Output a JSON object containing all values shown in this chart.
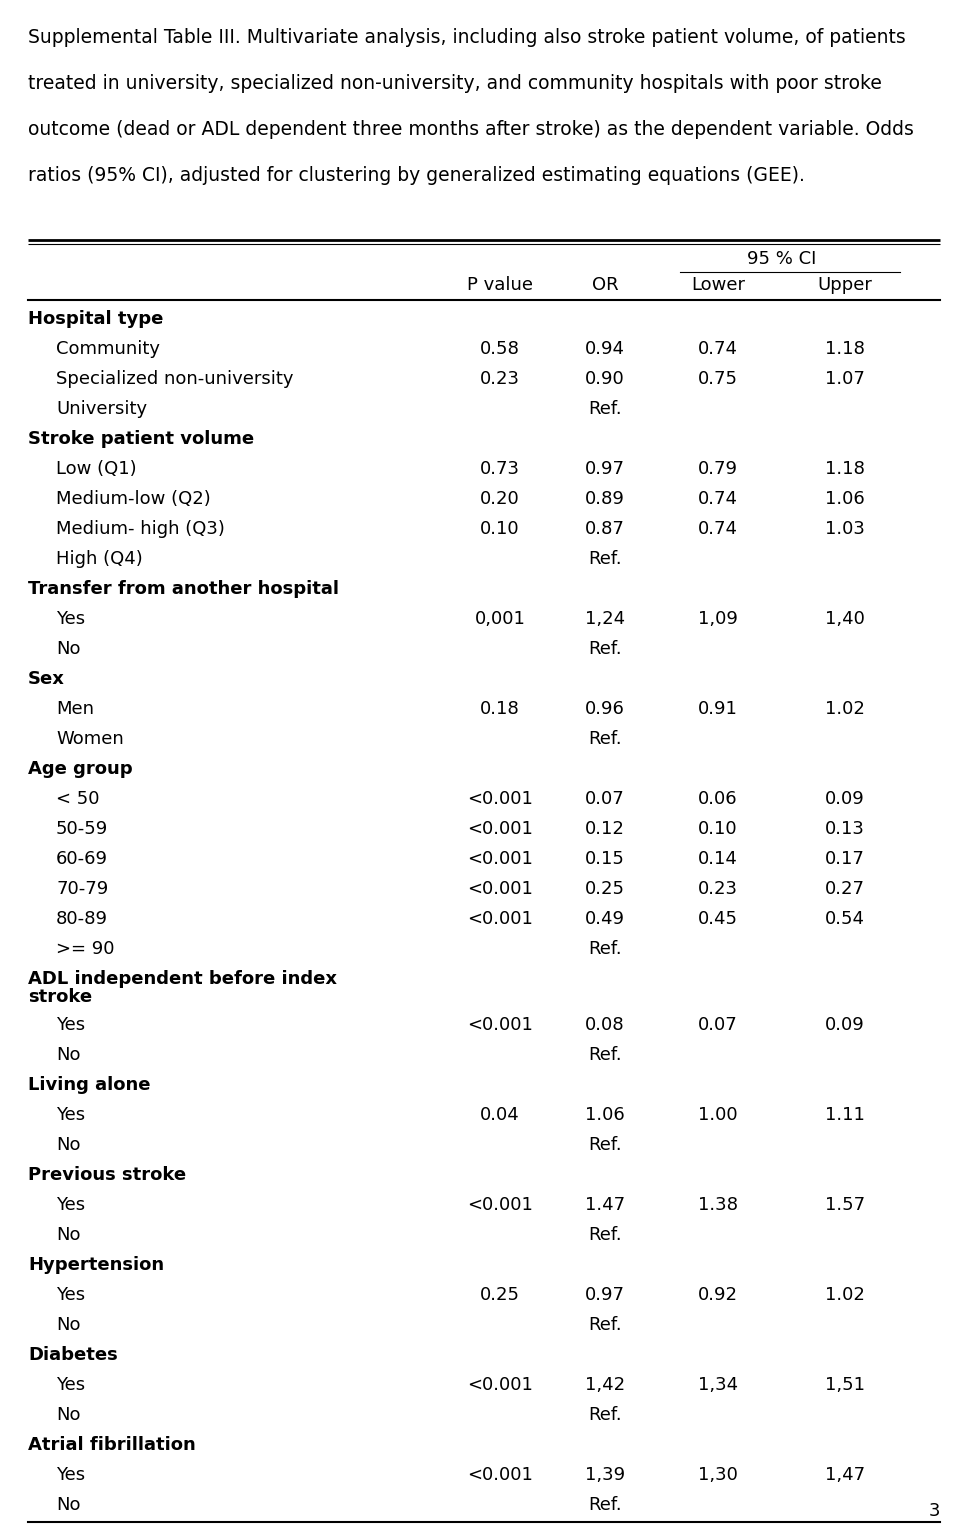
{
  "title_lines": [
    "Supplemental Table III. Multivariate analysis, including also stroke patient volume, of patients",
    "treated in university, specialized non-university, and community hospitals with poor stroke",
    "outcome (dead or ADL dependent three months after stroke) as the dependent variable. Odds",
    "ratios (95% CI), adjusted for clustering by generalized estimating equations (GEE)."
  ],
  "ci_header": "95 % CI",
  "col_labels": [
    "P value",
    "OR",
    "Lower",
    "Upper"
  ],
  "rows": [
    {
      "label": "Hospital type",
      "bold": true,
      "indent": false,
      "p": "",
      "or": "",
      "lower": "",
      "upper": ""
    },
    {
      "label": "Community",
      "bold": false,
      "indent": true,
      "p": "0.58",
      "or": "0.94",
      "lower": "0.74",
      "upper": "1.18"
    },
    {
      "label": "Specialized non-university",
      "bold": false,
      "indent": true,
      "p": "0.23",
      "or": "0.90",
      "lower": "0.75",
      "upper": "1.07"
    },
    {
      "label": "University",
      "bold": false,
      "indent": true,
      "p": "",
      "or": "Ref.",
      "lower": "",
      "upper": ""
    },
    {
      "label": "Stroke patient volume",
      "bold": true,
      "indent": false,
      "p": "",
      "or": "",
      "lower": "",
      "upper": ""
    },
    {
      "label": "Low (Q1)",
      "bold": false,
      "indent": true,
      "p": "0.73",
      "or": "0.97",
      "lower": "0.79",
      "upper": "1.18"
    },
    {
      "label": "Medium-low (Q2)",
      "bold": false,
      "indent": true,
      "p": "0.20",
      "or": "0.89",
      "lower": "0.74",
      "upper": "1.06"
    },
    {
      "label": "Medium- high (Q3)",
      "bold": false,
      "indent": true,
      "p": "0.10",
      "or": "0.87",
      "lower": "0.74",
      "upper": "1.03"
    },
    {
      "label": "High (Q4)",
      "bold": false,
      "indent": true,
      "p": "",
      "or": "Ref.",
      "lower": "",
      "upper": ""
    },
    {
      "label": "Transfer from another hospital",
      "bold": true,
      "indent": false,
      "p": "",
      "or": "",
      "lower": "",
      "upper": ""
    },
    {
      "label": "Yes",
      "bold": false,
      "indent": true,
      "p": "0,001",
      "or": "1,24",
      "lower": "1,09",
      "upper": "1,40"
    },
    {
      "label": "No",
      "bold": false,
      "indent": true,
      "p": "",
      "or": "Ref.",
      "lower": "",
      "upper": ""
    },
    {
      "label": "Sex",
      "bold": true,
      "indent": false,
      "p": "",
      "or": "",
      "lower": "",
      "upper": ""
    },
    {
      "label": "Men",
      "bold": false,
      "indent": true,
      "p": "0.18",
      "or": "0.96",
      "lower": "0.91",
      "upper": "1.02"
    },
    {
      "label": "Women",
      "bold": false,
      "indent": true,
      "p": "",
      "or": "Ref.",
      "lower": "",
      "upper": ""
    },
    {
      "label": "Age group",
      "bold": true,
      "indent": false,
      "p": "",
      "or": "",
      "lower": "",
      "upper": ""
    },
    {
      "label": "< 50",
      "bold": false,
      "indent": true,
      "p": "<0.001",
      "or": "0.07",
      "lower": "0.06",
      "upper": "0.09"
    },
    {
      "label": "50-59",
      "bold": false,
      "indent": true,
      "p": "<0.001",
      "or": "0.12",
      "lower": "0.10",
      "upper": "0.13"
    },
    {
      "label": "60-69",
      "bold": false,
      "indent": true,
      "p": "<0.001",
      "or": "0.15",
      "lower": "0.14",
      "upper": "0.17"
    },
    {
      "label": "70-79",
      "bold": false,
      "indent": true,
      "p": "<0.001",
      "or": "0.25",
      "lower": "0.23",
      "upper": "0.27"
    },
    {
      "label": "80-89",
      "bold": false,
      "indent": true,
      "p": "<0.001",
      "or": "0.49",
      "lower": "0.45",
      "upper": "0.54"
    },
    {
      "label": ">= 90",
      "bold": false,
      "indent": true,
      "p": "",
      "or": "Ref.",
      "lower": "",
      "upper": ""
    },
    {
      "label": "ADL independent before index stroke",
      "bold": true,
      "indent": false,
      "p": "",
      "or": "",
      "lower": "",
      "upper": "",
      "two_line": true
    },
    {
      "label": "Yes",
      "bold": false,
      "indent": true,
      "p": "<0.001",
      "or": "0.08",
      "lower": "0.07",
      "upper": "0.09"
    },
    {
      "label": "No",
      "bold": false,
      "indent": true,
      "p": "",
      "or": "Ref.",
      "lower": "",
      "upper": ""
    },
    {
      "label": "Living alone",
      "bold": true,
      "indent": false,
      "p": "",
      "or": "",
      "lower": "",
      "upper": ""
    },
    {
      "label": "Yes",
      "bold": false,
      "indent": true,
      "p": "0.04",
      "or": "1.06",
      "lower": "1.00",
      "upper": "1.11"
    },
    {
      "label": "No",
      "bold": false,
      "indent": true,
      "p": "",
      "or": "Ref.",
      "lower": "",
      "upper": ""
    },
    {
      "label": "Previous stroke",
      "bold": true,
      "indent": false,
      "p": "",
      "or": "",
      "lower": "",
      "upper": ""
    },
    {
      "label": "Yes",
      "bold": false,
      "indent": true,
      "p": "<0.001",
      "or": "1.47",
      "lower": "1.38",
      "upper": "1.57"
    },
    {
      "label": "No",
      "bold": false,
      "indent": true,
      "p": "",
      "or": "Ref.",
      "lower": "",
      "upper": ""
    },
    {
      "label": "Hypertension",
      "bold": true,
      "indent": false,
      "p": "",
      "or": "",
      "lower": "",
      "upper": ""
    },
    {
      "label": "Yes",
      "bold": false,
      "indent": true,
      "p": "0.25",
      "or": "0.97",
      "lower": "0.92",
      "upper": "1.02"
    },
    {
      "label": "No",
      "bold": false,
      "indent": true,
      "p": "",
      "or": "Ref.",
      "lower": "",
      "upper": ""
    },
    {
      "label": "Diabetes",
      "bold": true,
      "indent": false,
      "p": "",
      "or": "",
      "lower": "",
      "upper": ""
    },
    {
      "label": "Yes",
      "bold": false,
      "indent": true,
      "p": "<0.001",
      "or": "1,42",
      "lower": "1,34",
      "upper": "1,51"
    },
    {
      "label": "No",
      "bold": false,
      "indent": true,
      "p": "",
      "or": "Ref.",
      "lower": "",
      "upper": ""
    },
    {
      "label": "Atrial fibrillation",
      "bold": true,
      "indent": false,
      "p": "",
      "or": "",
      "lower": "",
      "upper": ""
    },
    {
      "label": "Yes",
      "bold": false,
      "indent": true,
      "p": "<0.001",
      "or": "1,39",
      "lower": "1,30",
      "upper": "1,47"
    },
    {
      "label": "No",
      "bold": false,
      "indent": true,
      "p": "",
      "or": "Ref.",
      "lower": "",
      "upper": ""
    }
  ],
  "page_number": "3"
}
